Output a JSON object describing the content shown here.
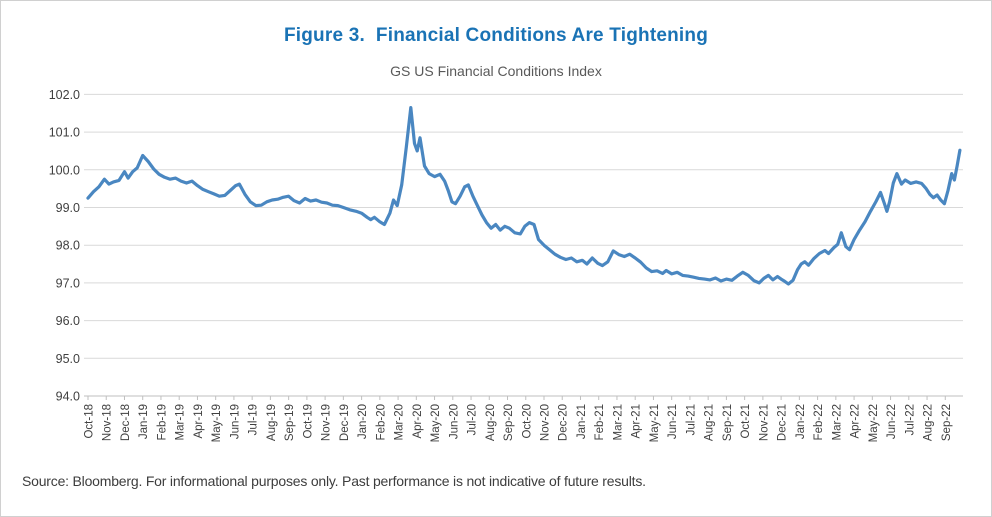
{
  "figure": {
    "title": "Figure 3.  Financial Conditions Are Tightening",
    "subtitle": "GS US Financial Conditions Index",
    "source_note": "Source: Bloomberg. For informational purposes only. Past performance is not indicative of future results."
  },
  "colors": {
    "title_text": "#1a73b5",
    "subtitle_text": "#595959",
    "axis_text": "#404040",
    "gridline": "#d9d9d9",
    "axis_line": "#bfbfbf",
    "series_line": "#4a87c1",
    "source_text": "#3d3d3d",
    "border": "#d0d0d0"
  },
  "chart_data": {
    "type": "line",
    "title": "GS US Financial Conditions Index",
    "xlabel": "",
    "ylabel": "",
    "ylim": [
      94.0,
      102.0
    ],
    "y_ticks": [
      102.0,
      101.0,
      100.0,
      99.0,
      98.0,
      97.0,
      96.0,
      95.0,
      94.0
    ],
    "grid": "horizontal",
    "legend": "none",
    "x_unit": "fractional month index, 0 = Oct-18 (weekly-resolution estimates)",
    "categories": [
      "Oct-18",
      "Nov-18",
      "Dec-18",
      "Jan-19",
      "Feb-19",
      "Mar-19",
      "Apr-19",
      "May-19",
      "Jun-19",
      "Jul-19",
      "Aug-19",
      "Sep-19",
      "Oct-19",
      "Nov-19",
      "Dec-19",
      "Jan-20",
      "Feb-20",
      "Mar-20",
      "Apr-20",
      "May-20",
      "Jun-20",
      "Jul-20",
      "Aug-20",
      "Sep-20",
      "Oct-20",
      "Nov-20",
      "Dec-20",
      "Jan-21",
      "Feb-21",
      "Mar-21",
      "Apr-21",
      "May-21",
      "Jun-21",
      "Jul-21",
      "Aug-21",
      "Sep-21",
      "Oct-21",
      "Nov-21",
      "Dec-21",
      "Jan-22",
      "Feb-22",
      "Mar-22",
      "Apr-22",
      "May-22",
      "Jun-22",
      "Jul-22",
      "Aug-22",
      "Sep-22"
    ],
    "series": [
      {
        "name": "GS US Financial Conditions Index",
        "color": "#4a87c1",
        "points": [
          [
            0.0,
            99.25
          ],
          [
            0.3,
            99.42
          ],
          [
            0.6,
            99.55
          ],
          [
            0.9,
            99.75
          ],
          [
            1.15,
            99.62
          ],
          [
            1.4,
            99.68
          ],
          [
            1.7,
            99.72
          ],
          [
            2.0,
            99.95
          ],
          [
            2.2,
            99.78
          ],
          [
            2.45,
            99.95
          ],
          [
            2.7,
            100.05
          ],
          [
            3.0,
            100.38
          ],
          [
            3.3,
            100.22
          ],
          [
            3.6,
            100.02
          ],
          [
            3.9,
            99.88
          ],
          [
            4.2,
            99.8
          ],
          [
            4.5,
            99.75
          ],
          [
            4.8,
            99.78
          ],
          [
            5.1,
            99.7
          ],
          [
            5.4,
            99.65
          ],
          [
            5.7,
            99.7
          ],
          [
            6.0,
            99.58
          ],
          [
            6.3,
            99.48
          ],
          [
            6.6,
            99.42
          ],
          [
            6.9,
            99.36
          ],
          [
            7.2,
            99.3
          ],
          [
            7.5,
            99.32
          ],
          [
            7.8,
            99.45
          ],
          [
            8.1,
            99.58
          ],
          [
            8.3,
            99.62
          ],
          [
            8.6,
            99.35
          ],
          [
            8.9,
            99.15
          ],
          [
            9.2,
            99.05
          ],
          [
            9.5,
            99.06
          ],
          [
            9.8,
            99.15
          ],
          [
            10.1,
            99.2
          ],
          [
            10.4,
            99.22
          ],
          [
            10.7,
            99.27
          ],
          [
            11.0,
            99.3
          ],
          [
            11.3,
            99.18
          ],
          [
            11.6,
            99.12
          ],
          [
            11.9,
            99.24
          ],
          [
            12.2,
            99.17
          ],
          [
            12.5,
            99.2
          ],
          [
            12.8,
            99.14
          ],
          [
            13.1,
            99.12
          ],
          [
            13.4,
            99.06
          ],
          [
            13.7,
            99.05
          ],
          [
            14.0,
            99.0
          ],
          [
            14.35,
            98.94
          ],
          [
            14.7,
            98.9
          ],
          [
            15.0,
            98.85
          ],
          [
            15.3,
            98.74
          ],
          [
            15.5,
            98.68
          ],
          [
            15.7,
            98.74
          ],
          [
            16.0,
            98.62
          ],
          [
            16.25,
            98.55
          ],
          [
            16.55,
            98.85
          ],
          [
            16.75,
            99.2
          ],
          [
            16.95,
            99.05
          ],
          [
            17.2,
            99.6
          ],
          [
            17.45,
            100.6
          ],
          [
            17.7,
            101.65
          ],
          [
            17.9,
            100.7
          ],
          [
            18.05,
            100.5
          ],
          [
            18.2,
            100.85
          ],
          [
            18.45,
            100.1
          ],
          [
            18.7,
            99.9
          ],
          [
            19.0,
            99.82
          ],
          [
            19.3,
            99.88
          ],
          [
            19.55,
            99.7
          ],
          [
            19.75,
            99.45
          ],
          [
            19.95,
            99.15
          ],
          [
            20.15,
            99.1
          ],
          [
            20.4,
            99.3
          ],
          [
            20.65,
            99.55
          ],
          [
            20.85,
            99.6
          ],
          [
            21.1,
            99.3
          ],
          [
            21.35,
            99.05
          ],
          [
            21.6,
            98.8
          ],
          [
            21.85,
            98.6
          ],
          [
            22.1,
            98.45
          ],
          [
            22.35,
            98.55
          ],
          [
            22.6,
            98.4
          ],
          [
            22.85,
            98.5
          ],
          [
            23.1,
            98.45
          ],
          [
            23.4,
            98.33
          ],
          [
            23.7,
            98.3
          ],
          [
            23.95,
            98.5
          ],
          [
            24.2,
            98.6
          ],
          [
            24.45,
            98.55
          ],
          [
            24.7,
            98.15
          ],
          [
            25.0,
            98.0
          ],
          [
            25.3,
            97.88
          ],
          [
            25.6,
            97.76
          ],
          [
            25.9,
            97.68
          ],
          [
            26.2,
            97.62
          ],
          [
            26.5,
            97.66
          ],
          [
            26.8,
            97.56
          ],
          [
            27.1,
            97.6
          ],
          [
            27.35,
            97.5
          ],
          [
            27.65,
            97.66
          ],
          [
            27.95,
            97.52
          ],
          [
            28.2,
            97.46
          ],
          [
            28.5,
            97.56
          ],
          [
            28.8,
            97.85
          ],
          [
            29.1,
            97.75
          ],
          [
            29.4,
            97.7
          ],
          [
            29.7,
            97.76
          ],
          [
            30.0,
            97.66
          ],
          [
            30.3,
            97.55
          ],
          [
            30.6,
            97.4
          ],
          [
            30.9,
            97.3
          ],
          [
            31.2,
            97.32
          ],
          [
            31.5,
            97.25
          ],
          [
            31.7,
            97.33
          ],
          [
            32.0,
            97.24
          ],
          [
            32.3,
            97.28
          ],
          [
            32.6,
            97.2
          ],
          [
            32.9,
            97.18
          ],
          [
            33.2,
            97.15
          ],
          [
            33.5,
            97.12
          ],
          [
            33.8,
            97.1
          ],
          [
            34.1,
            97.08
          ],
          [
            34.4,
            97.13
          ],
          [
            34.7,
            97.05
          ],
          [
            35.0,
            97.1
          ],
          [
            35.3,
            97.07
          ],
          [
            35.6,
            97.18
          ],
          [
            35.9,
            97.28
          ],
          [
            36.2,
            97.2
          ],
          [
            36.5,
            97.06
          ],
          [
            36.8,
            97.0
          ],
          [
            37.05,
            97.12
          ],
          [
            37.3,
            97.2
          ],
          [
            37.55,
            97.08
          ],
          [
            37.8,
            97.17
          ],
          [
            38.0,
            97.1
          ],
          [
            38.2,
            97.04
          ],
          [
            38.4,
            96.97
          ],
          [
            38.65,
            97.07
          ],
          [
            38.9,
            97.35
          ],
          [
            39.1,
            97.5
          ],
          [
            39.3,
            97.56
          ],
          [
            39.5,
            97.47
          ],
          [
            39.8,
            97.65
          ],
          [
            40.1,
            97.78
          ],
          [
            40.4,
            97.86
          ],
          [
            40.6,
            97.78
          ],
          [
            40.9,
            97.94
          ],
          [
            41.1,
            98.02
          ],
          [
            41.3,
            98.33
          ],
          [
            41.55,
            97.96
          ],
          [
            41.75,
            97.88
          ],
          [
            42.0,
            98.15
          ],
          [
            42.3,
            98.4
          ],
          [
            42.6,
            98.62
          ],
          [
            42.9,
            98.9
          ],
          [
            43.2,
            99.16
          ],
          [
            43.45,
            99.4
          ],
          [
            43.65,
            99.12
          ],
          [
            43.8,
            98.9
          ],
          [
            43.95,
            99.15
          ],
          [
            44.15,
            99.65
          ],
          [
            44.35,
            99.9
          ],
          [
            44.6,
            99.62
          ],
          [
            44.8,
            99.73
          ],
          [
            45.1,
            99.64
          ],
          [
            45.4,
            99.68
          ],
          [
            45.7,
            99.64
          ],
          [
            45.95,
            99.5
          ],
          [
            46.15,
            99.35
          ],
          [
            46.35,
            99.26
          ],
          [
            46.55,
            99.33
          ],
          [
            46.75,
            99.2
          ],
          [
            46.95,
            99.1
          ],
          [
            47.15,
            99.45
          ],
          [
            47.35,
            99.9
          ],
          [
            47.5,
            99.73
          ],
          [
            47.65,
            100.1
          ],
          [
            47.8,
            100.52
          ]
        ]
      }
    ]
  }
}
